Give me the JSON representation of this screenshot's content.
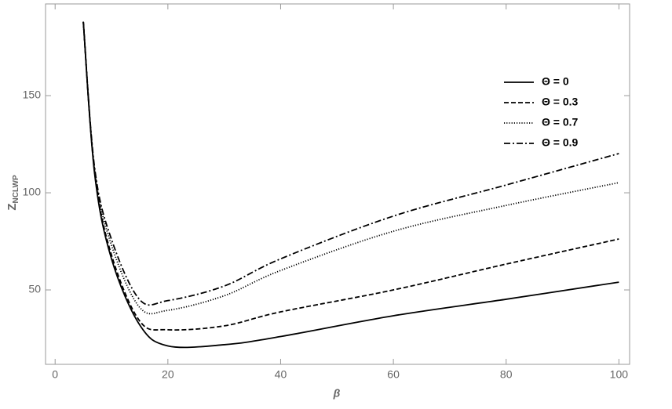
{
  "chart_data": {
    "type": "line",
    "xlabel": "β",
    "ylabel": "Z",
    "ylabel_sub": "NCLWP",
    "x": [
      5,
      7,
      10,
      15,
      20,
      30,
      40,
      60,
      80,
      100
    ],
    "series": [
      {
        "name": "Θ = 0",
        "color": "#000000",
        "dash": "none",
        "values": [
          188,
          110,
          66,
          32,
          21.2,
          21.8,
          26,
          36.7,
          45.2,
          54
        ]
      },
      {
        "name": "Θ = 0.3",
        "color": "#000000",
        "dash": "6,3",
        "values": [
          188,
          111,
          68,
          34,
          29.5,
          31.5,
          38.7,
          50,
          63.3,
          76.2
        ]
      },
      {
        "name": "Θ = 0.7",
        "color": "#000000",
        "dash": "1.2,2",
        "values": [
          188,
          112,
          73,
          41,
          39.5,
          47,
          60,
          80.2,
          93.5,
          105.2
        ]
      },
      {
        "name": "Θ = 0.9",
        "color": "#000000",
        "dash": "8,3,2,3",
        "values": [
          188,
          113,
          76,
          45,
          44.5,
          52,
          66,
          88,
          104,
          120.2
        ]
      }
    ],
    "xlim": [
      -1.7,
      101.9
    ],
    "ylim": [
      11.7,
      197.2
    ],
    "xticks": [
      0,
      20,
      40,
      60,
      80,
      100
    ],
    "yticks": [
      50,
      100,
      150
    ],
    "legend": "upper-right"
  }
}
